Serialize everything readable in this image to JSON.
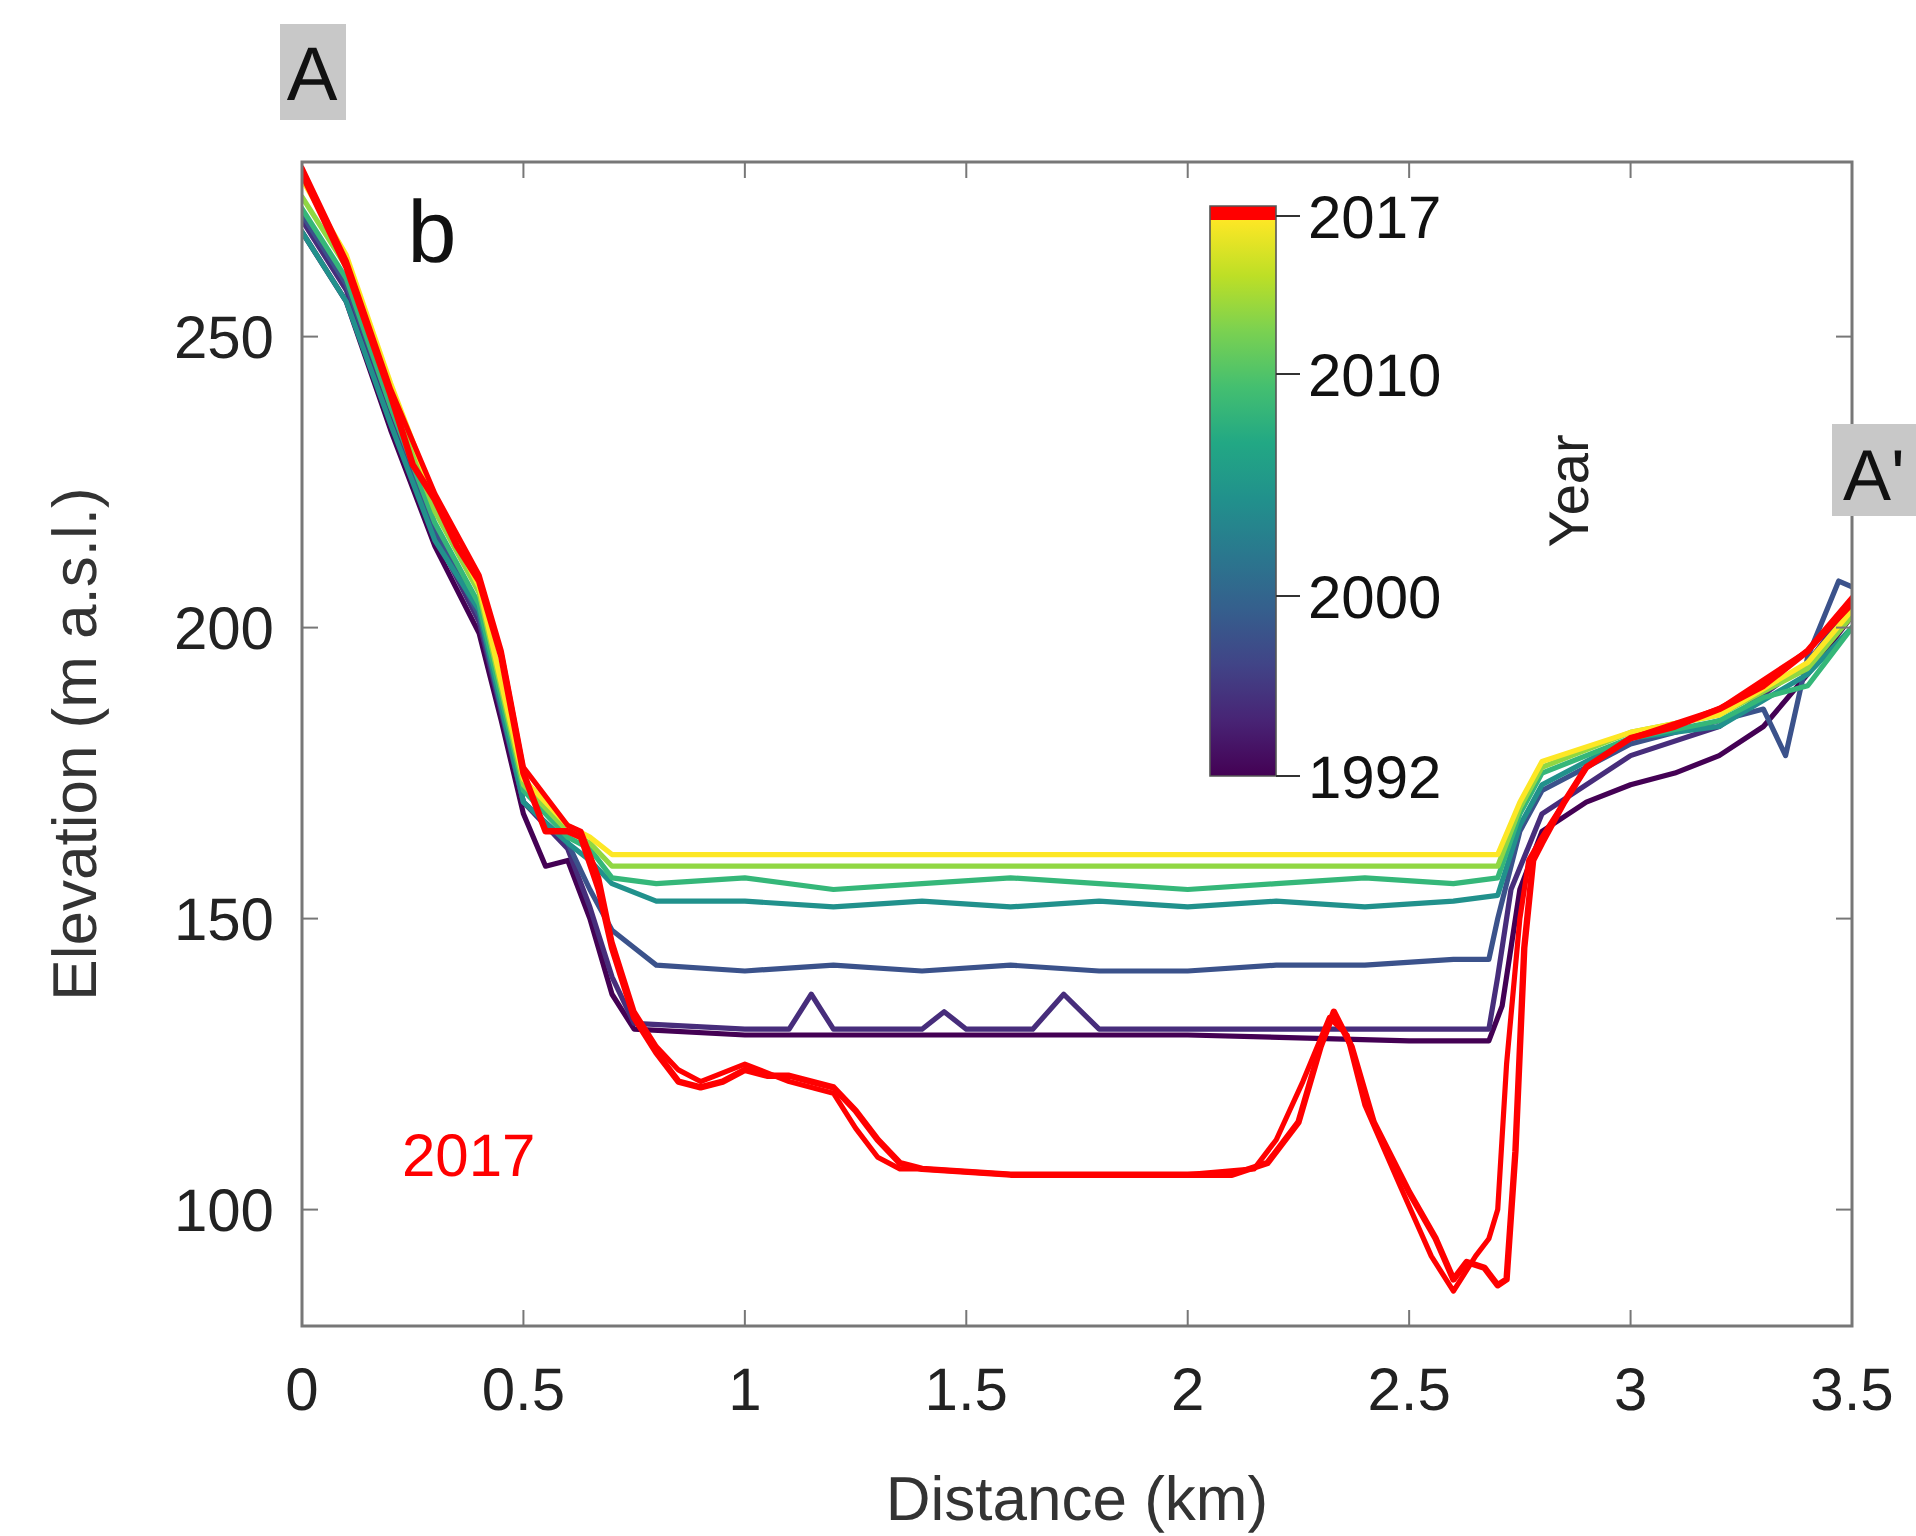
{
  "chart_data": {
    "type": "line",
    "xlabel": "Distance (km)",
    "ylabel": "Elevation (m a.s.l.)",
    "clabel": "Year",
    "xlim": [
      0,
      3.5
    ],
    "xticks": [
      0,
      0.5,
      1,
      1.5,
      2,
      2.5,
      3,
      3.5
    ],
    "ylim": [
      80,
      280
    ],
    "yticks": [
      100,
      150,
      200,
      250
    ],
    "grid": false,
    "annotations": [
      "A",
      "A'",
      "b",
      "1992",
      "2000",
      "2010",
      "2017"
    ],
    "series": [
      {
        "color": "#440154",
        "x": [
          0,
          0.1,
          0.2,
          0.3,
          0.4,
          0.45,
          0.5,
          0.55,
          0.6,
          0.65,
          0.7,
          0.75,
          1.0,
          1.5,
          2.0,
          2.5,
          2.68,
          2.71,
          2.75,
          2.8,
          2.9,
          3.0,
          3.1,
          3.2,
          3.3,
          3.4,
          3.5
        ],
        "values": [
          268,
          256,
          234,
          214,
          199,
          184,
          168,
          159,
          160,
          150,
          137,
          131,
          130,
          130,
          130,
          129,
          129,
          135,
          155,
          165,
          170,
          173,
          175,
          178,
          183,
          192,
          202
        ]
      },
      {
        "color": "#472d7b",
        "x": [
          0,
          0.1,
          0.2,
          0.3,
          0.4,
          0.5,
          0.6,
          0.65,
          0.7,
          0.75,
          1.0,
          1.1,
          1.15,
          1.2,
          1.4,
          1.45,
          1.5,
          1.65,
          1.72,
          1.8,
          2.0,
          2.3,
          2.6,
          2.68,
          2.7,
          2.73,
          2.8,
          3.0,
          3.2,
          3.4,
          3.5
        ],
        "values": [
          270,
          258,
          237,
          216,
          201,
          170,
          162,
          152,
          140,
          132,
          131,
          131,
          137,
          131,
          131,
          134,
          131,
          131,
          137,
          131,
          131,
          131,
          131,
          131,
          140,
          155,
          168,
          178,
          183,
          194,
          204
        ]
      },
      {
        "color": "#3b528b",
        "x": [
          0,
          0.1,
          0.2,
          0.3,
          0.4,
          0.5,
          0.6,
          0.65,
          0.7,
          0.75,
          0.8,
          1.0,
          1.2,
          1.4,
          1.6,
          1.8,
          2.0,
          2.2,
          2.4,
          2.6,
          2.68,
          2.7,
          2.75,
          2.8,
          3.0,
          3.2,
          3.3,
          3.35,
          3.4,
          3.47,
          3.5
        ],
        "values": [
          271,
          259,
          238,
          217,
          202,
          170,
          163,
          155,
          148,
          145,
          142,
          141,
          142,
          141,
          142,
          141,
          141,
          142,
          142,
          143,
          143,
          150,
          165,
          172,
          180,
          184,
          186,
          178,
          195,
          208,
          207
        ]
      },
      {
        "color": "#21918c",
        "x": [
          0,
          0.1,
          0.2,
          0.3,
          0.4,
          0.5,
          0.6,
          0.65,
          0.7,
          0.8,
          1.0,
          1.2,
          1.4,
          1.6,
          1.8,
          2.0,
          2.2,
          2.4,
          2.6,
          2.7,
          2.75,
          2.8,
          3.0,
          3.2,
          3.4,
          3.5
        ],
        "values": [
          268,
          256,
          235,
          215,
          203,
          170,
          163,
          160,
          156,
          153,
          153,
          152,
          153,
          152,
          153,
          152,
          153,
          152,
          153,
          154,
          166,
          173,
          181,
          183,
          192,
          200
        ]
      },
      {
        "color": "#35b779",
        "x": [
          0,
          0.1,
          0.2,
          0.3,
          0.4,
          0.5,
          0.6,
          0.65,
          0.7,
          0.8,
          1.0,
          1.2,
          1.4,
          1.6,
          1.8,
          2.0,
          2.2,
          2.4,
          2.6,
          2.7,
          2.75,
          2.8,
          3.0,
          3.2,
          3.3,
          3.4,
          3.5
        ],
        "values": [
          272,
          260,
          238,
          218,
          204,
          172,
          164,
          162,
          157,
          156,
          157,
          155,
          156,
          157,
          156,
          155,
          156,
          157,
          156,
          157,
          168,
          175,
          181,
          184,
          188,
          190,
          200
        ]
      },
      {
        "color": "#90d743",
        "x": [
          0,
          0.1,
          0.2,
          0.3,
          0.4,
          0.5,
          0.6,
          0.65,
          0.7,
          0.8,
          1.0,
          1.5,
          2.0,
          2.5,
          2.7,
          2.75,
          2.8,
          3.0,
          3.2,
          3.4,
          3.5
        ],
        "values": [
          274,
          262,
          240,
          220,
          206,
          173,
          165,
          163,
          159,
          159,
          159,
          159,
          159,
          159,
          159,
          169,
          176,
          182,
          185,
          193,
          202
        ]
      },
      {
        "color": "#fde725",
        "x": [
          0,
          0.1,
          0.2,
          0.3,
          0.4,
          0.5,
          0.6,
          0.65,
          0.7,
          0.8,
          1.0,
          1.5,
          2.0,
          2.5,
          2.7,
          2.75,
          2.8,
          3.0,
          3.2,
          3.4,
          3.5
        ],
        "values": [
          277,
          264,
          242,
          222,
          207,
          174,
          166,
          164,
          161,
          161,
          161,
          161,
          161,
          161,
          161,
          170,
          177,
          182,
          185,
          194,
          203
        ]
      },
      {
        "name": "2017",
        "color": "#ff0000",
        "x": [
          0,
          0.05,
          0.1,
          0.2,
          0.25,
          0.3,
          0.35,
          0.4,
          0.45,
          0.5,
          0.55,
          0.6,
          0.63,
          0.67,
          0.7,
          0.75,
          0.8,
          0.85,
          0.9,
          0.95,
          1.0,
          1.05,
          1.1,
          1.15,
          1.2,
          1.25,
          1.3,
          1.35,
          1.4,
          1.6,
          2.0,
          2.1,
          2.18,
          2.25,
          2.3,
          2.33,
          2.37,
          2.42,
          2.5,
          2.56,
          2.6,
          2.63,
          2.67,
          2.7,
          2.72,
          2.74,
          2.76,
          2.78,
          2.8,
          2.85,
          2.9,
          3.0,
          3.1,
          3.2,
          3.3,
          3.4,
          3.5
        ],
        "values": [
          278,
          270,
          262,
          240,
          228,
          222,
          214,
          208,
          195,
          175,
          165,
          165,
          164,
          155,
          145,
          133,
          127,
          122,
          121,
          122,
          124,
          123,
          123,
          122,
          121,
          117,
          112,
          108,
          107,
          106,
          106,
          106,
          108,
          115,
          128,
          134,
          128,
          115,
          103,
          95,
          88,
          91,
          90,
          87,
          88,
          110,
          145,
          160,
          163,
          170,
          176,
          181,
          183,
          186,
          190,
          196,
          205
        ]
      },
      {
        "color": "#ff0000",
        "x": [
          0,
          0.05,
          0.1,
          0.2,
          0.3,
          0.4,
          0.45,
          0.5,
          0.6,
          0.63,
          0.67,
          0.7,
          0.75,
          0.8,
          0.85,
          0.9,
          1.0,
          1.1,
          1.2,
          1.25,
          1.3,
          1.35,
          1.4,
          1.6,
          2.0,
          2.15,
          2.2,
          2.26,
          2.32,
          2.36,
          2.4,
          2.48,
          2.55,
          2.6,
          2.65,
          2.68,
          2.7,
          2.72,
          2.75,
          2.77,
          2.8,
          2.9,
          3.0,
          3.2,
          3.4,
          3.5
        ],
        "values": [
          279,
          271,
          263,
          241,
          223,
          209,
          196,
          176,
          166,
          165,
          157,
          146,
          134,
          128,
          124,
          122,
          125,
          122,
          120,
          114,
          109,
          107,
          107,
          106,
          106,
          107,
          112,
          122,
          133,
          130,
          118,
          104,
          92,
          86,
          92,
          95,
          100,
          125,
          150,
          160,
          164,
          176,
          181,
          186,
          196,
          204
        ]
      }
    ]
  }
}
